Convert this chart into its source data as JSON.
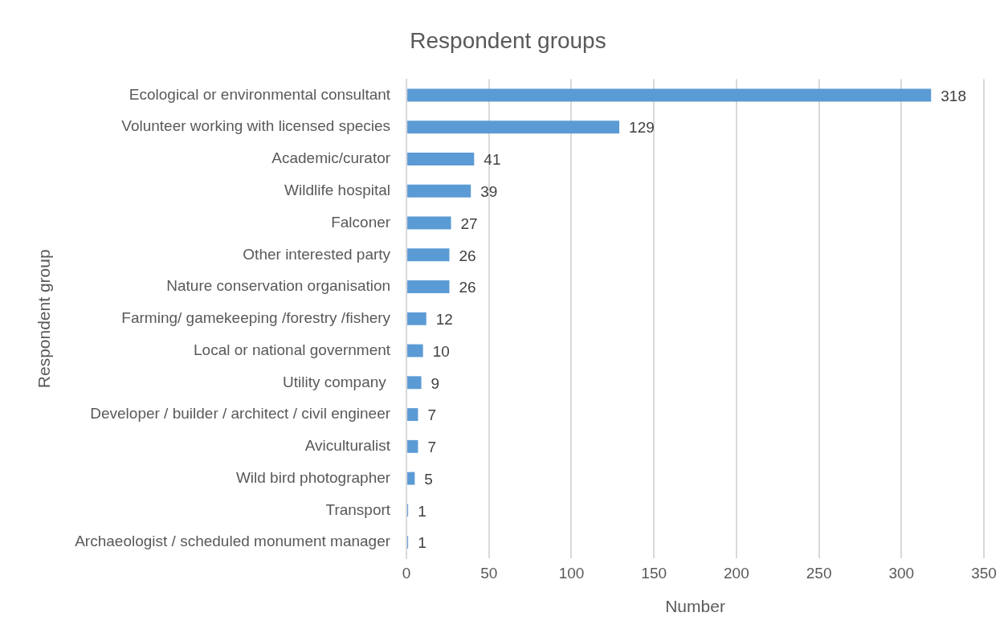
{
  "chart_data": {
    "type": "bar",
    "orientation": "horizontal",
    "title": "Respondent groups",
    "xlabel": "Number",
    "ylabel": "Respondent group",
    "categories": [
      "Ecological or environmental consultant",
      "Volunteer working with licensed species",
      "Academic/curator",
      "Wildlife hospital",
      "Falconer",
      "Other interested party",
      "Nature conservation organisation",
      "Farming/ gamekeeping /forestry /fishery",
      "Local or national government",
      "Utility company ",
      "Developer / builder / architect / civil engineer",
      "Aviculturalist",
      "Wild bird photographer",
      "Transport",
      "Archaeologist / scheduled monument manager"
    ],
    "values": [
      318,
      129,
      41,
      39,
      27,
      26,
      26,
      12,
      10,
      9,
      7,
      7,
      5,
      1,
      1
    ],
    "color": "#5b9bd5",
    "xlim": [
      0,
      350
    ],
    "xticks": [
      0,
      50,
      100,
      150,
      200,
      250,
      300,
      350
    ],
    "grid": "x",
    "data_labels": true,
    "legend": false
  }
}
